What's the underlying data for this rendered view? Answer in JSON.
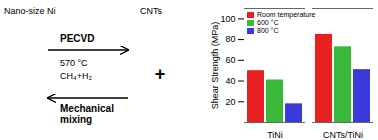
{
  "chart_data": {
    "type": "bar",
    "categories": [
      "TiNi",
      "CNTs/TiNi"
    ],
    "series": [
      {
        "name": "Room temperature",
        "color": "#e82020",
        "values": [
          50,
          85
        ]
      },
      {
        "name": "600 °C",
        "color": "#3ab83a",
        "values": [
          41,
          73
        ]
      },
      {
        "name": "800 °C",
        "color": "#3a3adb",
        "values": [
          18,
          51
        ]
      }
    ],
    "ylabel": "Shear Strength (MPa)",
    "ylim": [
      0,
      110
    ],
    "yticks": [
      20,
      40,
      60,
      80,
      100
    ],
    "legend": "upper left",
    "annotations": [
      "Nano-size Ni",
      "PECVD",
      "570 °C",
      "CH₄+H₂",
      "Mechanical\nmixing",
      "CNTs",
      "+"
    ]
  }
}
